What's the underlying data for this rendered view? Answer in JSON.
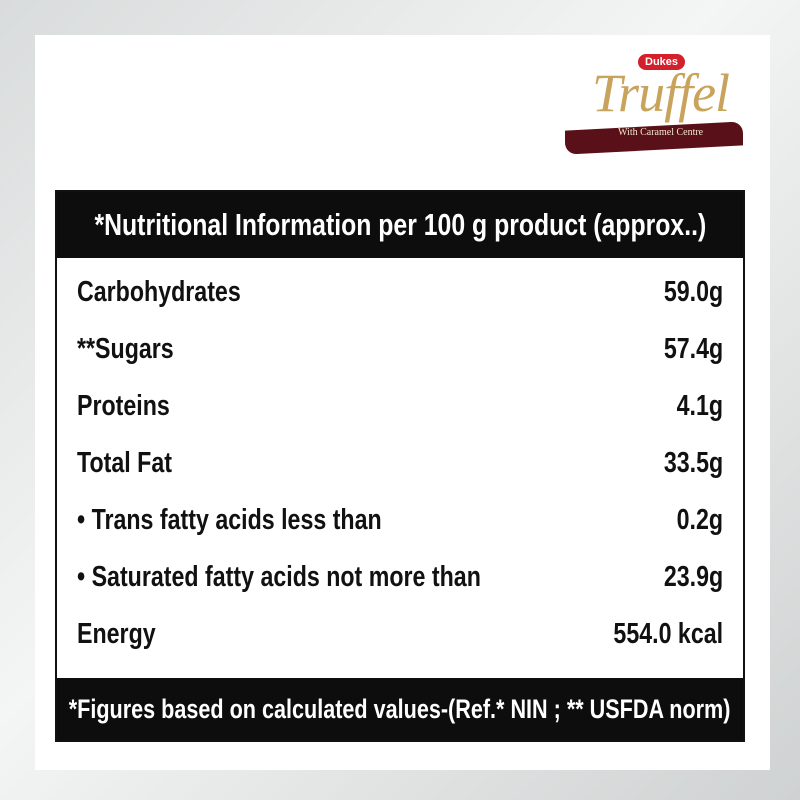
{
  "brand": {
    "maker": "Dukes",
    "name": "Truffel",
    "tagline": "With Caramel Centre"
  },
  "table": {
    "title": "*Nutritional Information per 100 g product (approx..)",
    "rows": [
      [
        "Carbohydrates",
        "59.0g"
      ],
      [
        "**Sugars",
        "57.4g"
      ],
      [
        "Proteins",
        "4.1g"
      ],
      [
        "Total Fat",
        "33.5g"
      ],
      [
        "• Trans fatty acids less than",
        "0.2g"
      ],
      [
        "• Saturated fatty acids not more than",
        "23.9g"
      ],
      [
        "Energy",
        "554.0 kcal"
      ]
    ],
    "footnote": "*Figures based on calculated values-(Ref.* NIN ; ** USFDA norm)"
  }
}
